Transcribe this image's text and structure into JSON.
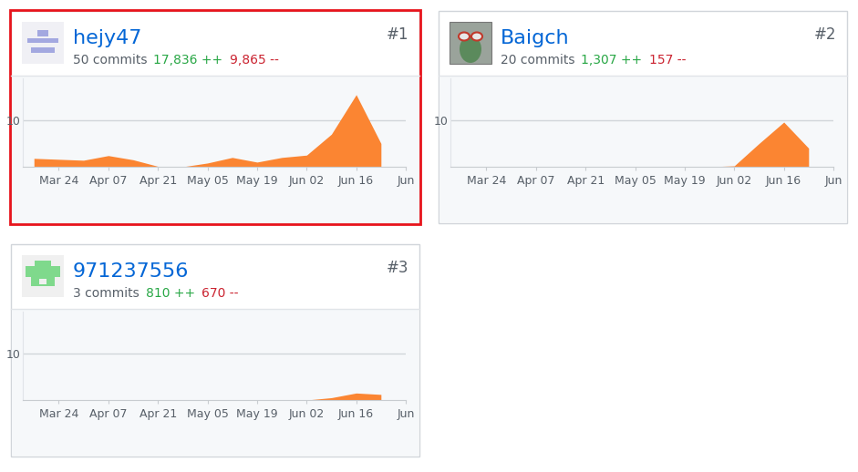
{
  "chart_data": [
    {
      "type": "area",
      "title": "hejy47",
      "subtitle": "50 commits",
      "annotations": {
        "additions": "17,836 ++",
        "deletions": "9,865 --",
        "rank": "#1"
      },
      "categories": [
        null,
        "Mar 24",
        null,
        "Apr 07",
        null,
        "Apr 21",
        null,
        "May 05",
        null,
        "May 19",
        null,
        "Jun 02",
        null,
        "Jun 16",
        null,
        "Jun"
      ],
      "values": [
        1.8,
        1.6,
        1.4,
        2.4,
        1.5,
        0.1,
        0,
        0.8,
        2.0,
        1.0,
        2.0,
        2.5,
        7.0,
        15.5,
        5.0,
        null
      ],
      "color": "#fb8532",
      "xlim": [
        -0.45,
        15.0
      ],
      "ylim": [
        0,
        19
      ],
      "yticks": [
        10
      ],
      "grid": true
    },
    {
      "type": "area",
      "title": "Baigch",
      "subtitle": "20 commits",
      "annotations": {
        "additions": "1,307 ++",
        "deletions": "157 --",
        "rank": "#2"
      },
      "categories": [
        null,
        "Mar 24",
        null,
        "Apr 07",
        null,
        "Apr 21",
        null,
        "May 05",
        null,
        "May 19",
        null,
        "Jun 02",
        null,
        "Jun 16",
        null,
        "Jun"
      ],
      "values": [
        0,
        0,
        0,
        0,
        0,
        0,
        0,
        0,
        0,
        0,
        0,
        0.2,
        5.0,
        9.6,
        4.0,
        null
      ],
      "color": "#fb8532",
      "xlim": [
        -0.45,
        15.0
      ],
      "ylim": [
        0,
        19
      ],
      "yticks": [
        10
      ],
      "grid": true
    },
    {
      "type": "area",
      "title": "971237556",
      "subtitle": "3 commits",
      "annotations": {
        "additions": "810 ++",
        "deletions": "670 --",
        "rank": "#3"
      },
      "categories": [
        null,
        "Mar 24",
        null,
        "Apr 07",
        null,
        "Apr 21",
        null,
        "May 05",
        null,
        "May 19",
        null,
        "Jun 02",
        null,
        "Jun 16",
        null,
        "Jun"
      ],
      "values": [
        0,
        0,
        0,
        0,
        0,
        0,
        0,
        0,
        0,
        0,
        0,
        0,
        0.5,
        1.5,
        1.2,
        null
      ],
      "color": "#fb8532",
      "xlim": [
        -0.45,
        15.0
      ],
      "ylim": [
        0,
        19
      ],
      "yticks": [
        10
      ],
      "grid": true
    }
  ]
}
